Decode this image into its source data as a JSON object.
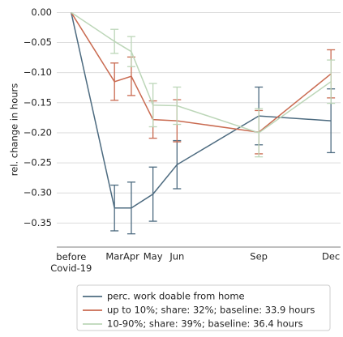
{
  "chart_data": {
    "type": "line",
    "y_label": "rel. change in hours",
    "x": [
      1.2,
      3.0,
      3.7,
      4.6,
      5.6,
      9.0,
      12.0
    ],
    "xlim": [
      0.6,
      12.4
    ],
    "xticks": [
      {
        "value": 1.2,
        "label": "before Covid-19"
      },
      {
        "value": 3.0,
        "label": "Mar"
      },
      {
        "value": 3.7,
        "label": "Apr"
      },
      {
        "value": 4.6,
        "label": "May"
      },
      {
        "value": 5.6,
        "label": "Jun"
      },
      {
        "value": 9.0,
        "label": "Sep"
      },
      {
        "value": 12.0,
        "label": "Dec"
      }
    ],
    "ylim": [
      -0.39,
      0.01
    ],
    "yticks": [
      {
        "value": 0,
        "label": "0.00"
      },
      {
        "value": -0.05,
        "label": "−0.05"
      },
      {
        "value": -0.1,
        "label": "−0.10"
      },
      {
        "value": -0.15,
        "label": "−0.15"
      },
      {
        "value": -0.2,
        "label": "−0.20"
      },
      {
        "value": -0.25,
        "label": "−0.25"
      },
      {
        "value": -0.3,
        "label": "−0.30"
      },
      {
        "value": -0.35,
        "label": "−0.35"
      }
    ],
    "grid": true,
    "series": [
      {
        "name": "perc. work doable from home",
        "color": "#4d6b80",
        "values": [
          0,
          -0.325,
          -0.325,
          -0.302,
          -0.253,
          -0.172,
          -0.18
        ],
        "errors": [
          null,
          0.038,
          0.043,
          0.045,
          0.04,
          0.048,
          0.053
        ]
      },
      {
        "name": "up to 10%; share: 32%; baseline: 33.9 hours",
        "color": "#c96a50",
        "values": [
          0,
          -0.115,
          -0.106,
          -0.178,
          -0.18,
          -0.199,
          -0.102
        ],
        "errors": [
          null,
          0.031,
          0.032,
          0.031,
          0.035,
          0.036,
          0.04
        ]
      },
      {
        "name": "10-90%; share: 39%; baseline: 36.4 hours",
        "color": "#bcd6b8",
        "values": [
          0,
          -0.048,
          -0.065,
          -0.154,
          -0.155,
          -0.2,
          -0.115
        ],
        "errors": [
          null,
          0.02,
          0.025,
          0.036,
          0.031,
          0.04,
          0.036
        ]
      }
    ]
  }
}
